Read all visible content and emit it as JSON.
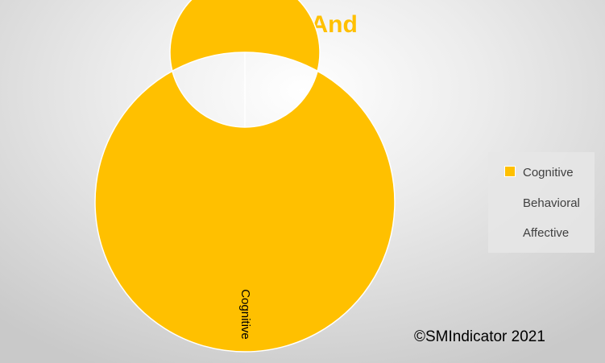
{
  "chart_data": {
    "type": "donut",
    "title": "Both-And",
    "categories": [
      "Cognitive",
      "Behavioral",
      "Affective"
    ],
    "values": [
      1,
      0,
      0
    ],
    "colors": [
      "#ffc000",
      "#ed7d31",
      "#a5a5a5"
    ],
    "data_labels": [
      "Cognitive"
    ],
    "legend_position": "right"
  },
  "footer": {
    "copyright": "©SMIndicator 2021"
  }
}
